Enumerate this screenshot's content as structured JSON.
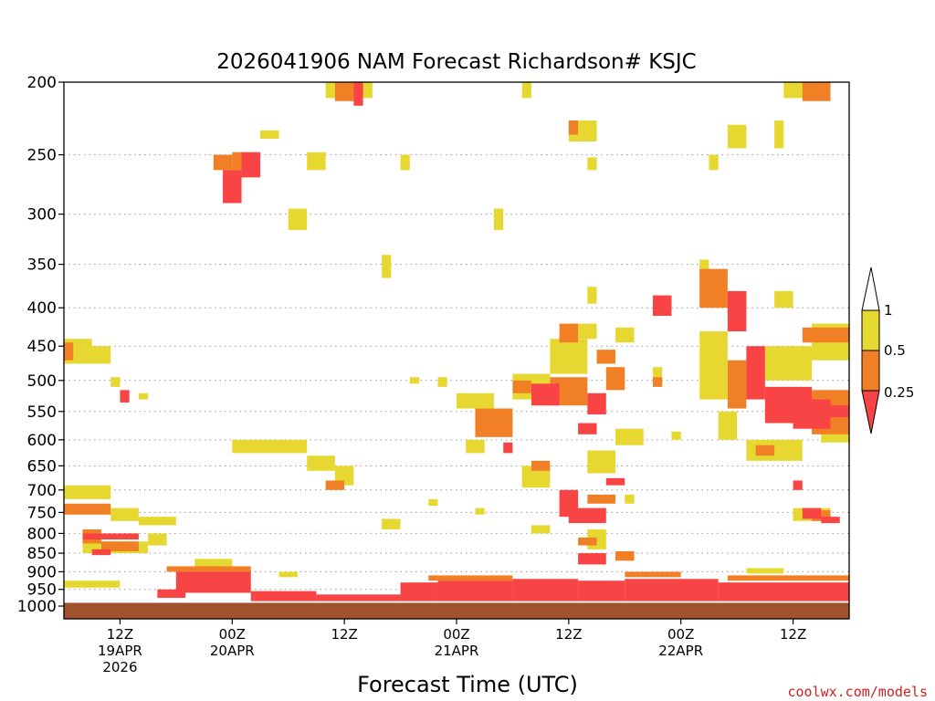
{
  "chart_data": {
    "type": "heatmap",
    "title": "2026041906 NAM Forecast Richardson# KSJC",
    "xlabel": "Forecast Time (UTC)",
    "ylabel": "",
    "credit": "coolwx.com/models",
    "y_scale": "log-pressure (inverted)",
    "ylim": [
      1040,
      200
    ],
    "xlim": [
      0,
      84
    ],
    "y_ticks": [
      200,
      250,
      300,
      350,
      400,
      450,
      500,
      550,
      600,
      650,
      700,
      750,
      800,
      850,
      900,
      950,
      1000
    ],
    "x_ticks": [
      {
        "hour": 6,
        "lines": [
          "12Z",
          "19APR",
          "2026"
        ]
      },
      {
        "hour": 18,
        "lines": [
          "00Z",
          "20APR"
        ]
      },
      {
        "hour": 30,
        "lines": [
          "12Z"
        ]
      },
      {
        "hour": 42,
        "lines": [
          "00Z",
          "21APR"
        ]
      },
      {
        "hour": 54,
        "lines": [
          "12Z"
        ]
      },
      {
        "hour": 66,
        "lines": [
          "00Z",
          "22APR"
        ]
      },
      {
        "hour": 78,
        "lines": [
          "12Z"
        ]
      }
    ],
    "colorbar": {
      "levels": [
        "1",
        "0.5",
        "0.25"
      ],
      "bins": [
        {
          "label": "0.5 - 1",
          "color": "#e6d830"
        },
        {
          "label": "0.25 - 0.5",
          "color": "#f07f25"
        },
        {
          "label": "< 0.25",
          "color": "#f84444"
        }
      ]
    },
    "colors": {
      "low": "#f84444",
      "mid": "#f07f25",
      "high": "#e6d830",
      "ground": "#a0522d"
    },
    "ground_level_hpa": 990,
    "cell_hours": 1,
    "series": [
      {
        "name": "0.5-1",
        "cells": [
          {
            "t0": 28,
            "t1": 33,
            "p0": 200,
            "p1": 210
          },
          {
            "t0": 49,
            "t1": 50,
            "p0": 200,
            "p1": 210
          },
          {
            "t0": 77,
            "t1": 82,
            "p0": 200,
            "p1": 210
          },
          {
            "t0": 21,
            "t1": 23,
            "p0": 232,
            "p1": 238
          },
          {
            "t0": 54,
            "t1": 57,
            "p0": 225,
            "p1": 240
          },
          {
            "t0": 71,
            "t1": 73,
            "p0": 228,
            "p1": 245
          },
          {
            "t0": 76,
            "t1": 77,
            "p0": 225,
            "p1": 245
          },
          {
            "t0": 26,
            "t1": 28,
            "p0": 248,
            "p1": 262
          },
          {
            "t0": 36,
            "t1": 37,
            "p0": 250,
            "p1": 262
          },
          {
            "t0": 56,
            "t1": 57,
            "p0": 252,
            "p1": 262
          },
          {
            "t0": 69,
            "t1": 70,
            "p0": 250,
            "p1": 262
          },
          {
            "t0": 24,
            "t1": 26,
            "p0": 295,
            "p1": 315
          },
          {
            "t0": 46,
            "t1": 47,
            "p0": 295,
            "p1": 315
          },
          {
            "t0": 34,
            "t1": 35,
            "p0": 340,
            "p1": 365
          },
          {
            "t0": 68,
            "t1": 69,
            "p0": 345,
            "p1": 375
          },
          {
            "t0": 56,
            "t1": 57,
            "p0": 375,
            "p1": 395
          },
          {
            "t0": 72,
            "t1": 73,
            "p0": 380,
            "p1": 400
          },
          {
            "t0": 76,
            "t1": 78,
            "p0": 380,
            "p1": 400
          },
          {
            "t0": 0,
            "t1": 5,
            "p0": 450,
            "p1": 475
          },
          {
            "t0": 0,
            "t1": 3,
            "p0": 440,
            "p1": 460
          },
          {
            "t0": 5,
            "t1": 6,
            "p0": 495,
            "p1": 510
          },
          {
            "t0": 8,
            "t1": 9,
            "p0": 520,
            "p1": 530
          },
          {
            "t0": 37,
            "t1": 38,
            "p0": 495,
            "p1": 505
          },
          {
            "t0": 40,
            "t1": 41,
            "p0": 495,
            "p1": 510
          },
          {
            "t0": 42,
            "t1": 46,
            "p0": 520,
            "p1": 545
          },
          {
            "t0": 48,
            "t1": 52,
            "p0": 490,
            "p1": 530
          },
          {
            "t0": 52,
            "t1": 56,
            "p0": 440,
            "p1": 490
          },
          {
            "t0": 54,
            "t1": 57,
            "p0": 420,
            "p1": 440
          },
          {
            "t0": 59,
            "t1": 61,
            "p0": 425,
            "p1": 445
          },
          {
            "t0": 63,
            "t1": 64,
            "p0": 480,
            "p1": 500
          },
          {
            "t0": 68,
            "t1": 71,
            "p0": 430,
            "p1": 530
          },
          {
            "t0": 75,
            "t1": 80,
            "p0": 450,
            "p1": 500
          },
          {
            "t0": 80,
            "t1": 84,
            "p0": 420,
            "p1": 470
          },
          {
            "t0": 70,
            "t1": 72,
            "p0": 550,
            "p1": 600
          },
          {
            "t0": 73,
            "t1": 79,
            "p0": 600,
            "p1": 640
          },
          {
            "t0": 81,
            "t1": 84,
            "p0": 580,
            "p1": 605
          },
          {
            "t0": 18,
            "t1": 26,
            "p0": 600,
            "p1": 625
          },
          {
            "t0": 26,
            "t1": 29,
            "p0": 630,
            "p1": 660
          },
          {
            "t0": 29,
            "t1": 31,
            "p0": 650,
            "p1": 690
          },
          {
            "t0": 43,
            "t1": 45,
            "p0": 600,
            "p1": 625
          },
          {
            "t0": 49,
            "t1": 52,
            "p0": 650,
            "p1": 695
          },
          {
            "t0": 56,
            "t1": 59,
            "p0": 620,
            "p1": 665
          },
          {
            "t0": 59,
            "t1": 62,
            "p0": 580,
            "p1": 610
          },
          {
            "t0": 65,
            "t1": 66,
            "p0": 585,
            "p1": 600
          },
          {
            "t0": 0,
            "t1": 5,
            "p0": 690,
            "p1": 720
          },
          {
            "t0": 5,
            "t1": 8,
            "p0": 740,
            "p1": 770
          },
          {
            "t0": 8,
            "t1": 12,
            "p0": 760,
            "p1": 780
          },
          {
            "t0": 2,
            "t1": 9,
            "p0": 820,
            "p1": 850
          },
          {
            "t0": 9,
            "t1": 11,
            "p0": 800,
            "p1": 830
          },
          {
            "t0": 34,
            "t1": 36,
            "p0": 765,
            "p1": 790
          },
          {
            "t0": 39,
            "t1": 40,
            "p0": 720,
            "p1": 735
          },
          {
            "t0": 44,
            "t1": 45,
            "p0": 740,
            "p1": 755
          },
          {
            "t0": 50,
            "t1": 52,
            "p0": 780,
            "p1": 800
          },
          {
            "t0": 56,
            "t1": 58,
            "p0": 790,
            "p1": 840
          },
          {
            "t0": 60,
            "t1": 61,
            "p0": 710,
            "p1": 730
          },
          {
            "t0": 78,
            "t1": 82,
            "p0": 740,
            "p1": 770
          },
          {
            "t0": 14,
            "t1": 18,
            "p0": 865,
            "p1": 890
          },
          {
            "t0": 0,
            "t1": 6,
            "p0": 925,
            "p1": 945
          },
          {
            "t0": 23,
            "t1": 25,
            "p0": 900,
            "p1": 915
          },
          {
            "t0": 73,
            "t1": 77,
            "p0": 890,
            "p1": 905
          }
        ]
      },
      {
        "name": "0.25-0.5",
        "cells": [
          {
            "t0": 29,
            "t1": 31,
            "p0": 200,
            "p1": 212
          },
          {
            "t0": 53,
            "t1": 55,
            "p0": 420,
            "p1": 445
          },
          {
            "t0": 79,
            "t1": 82,
            "p0": 200,
            "p1": 212
          },
          {
            "t0": 16,
            "t1": 18,
            "p0": 250,
            "p1": 262
          },
          {
            "t0": 54,
            "t1": 55,
            "p0": 225,
            "p1": 235
          },
          {
            "t0": 18,
            "t1": 19,
            "p0": 248,
            "p1": 262
          },
          {
            "t0": 68,
            "t1": 71,
            "p0": 355,
            "p1": 400
          },
          {
            "t0": 63,
            "t1": 64,
            "p0": 495,
            "p1": 510
          },
          {
            "t0": 0,
            "t1": 1,
            "p0": 445,
            "p1": 470
          },
          {
            "t0": 44,
            "t1": 48,
            "p0": 545,
            "p1": 595
          },
          {
            "t0": 48,
            "t1": 50,
            "p0": 500,
            "p1": 520
          },
          {
            "t0": 52,
            "t1": 56,
            "p0": 495,
            "p1": 540
          },
          {
            "t0": 58,
            "t1": 60,
            "p0": 480,
            "p1": 515
          },
          {
            "t0": 57,
            "t1": 59,
            "p0": 455,
            "p1": 475
          },
          {
            "t0": 79,
            "t1": 84,
            "p0": 425,
            "p1": 445
          },
          {
            "t0": 80,
            "t1": 84,
            "p0": 515,
            "p1": 590
          },
          {
            "t0": 71,
            "t1": 73,
            "p0": 470,
            "p1": 545
          },
          {
            "t0": 74,
            "t1": 76,
            "p0": 610,
            "p1": 630
          },
          {
            "t0": 0,
            "t1": 5,
            "p0": 730,
            "p1": 755
          },
          {
            "t0": 2,
            "t1": 4,
            "p0": 790,
            "p1": 825
          },
          {
            "t0": 4,
            "t1": 8,
            "p0": 820,
            "p1": 845
          },
          {
            "t0": 28,
            "t1": 30,
            "p0": 680,
            "p1": 700
          },
          {
            "t0": 50,
            "t1": 52,
            "p0": 640,
            "p1": 660
          },
          {
            "t0": 56,
            "t1": 59,
            "p0": 710,
            "p1": 730
          },
          {
            "t0": 55,
            "t1": 57,
            "p0": 810,
            "p1": 830
          },
          {
            "t0": 80,
            "t1": 82,
            "p0": 745,
            "p1": 770
          },
          {
            "t0": 59,
            "t1": 61,
            "p0": 845,
            "p1": 870
          },
          {
            "t0": 14,
            "t1": 17,
            "p0": 885,
            "p1": 905
          },
          {
            "t0": 39,
            "t1": 48,
            "p0": 910,
            "p1": 925
          },
          {
            "t0": 60,
            "t1": 66,
            "p0": 900,
            "p1": 915
          },
          {
            "t0": 71,
            "t1": 84,
            "p0": 910,
            "p1": 925
          },
          {
            "t0": 11,
            "t1": 20,
            "p0": 885,
            "p1": 900
          }
        ]
      },
      {
        "name": "<0.25",
        "cells": [
          {
            "t0": 31,
            "t1": 32,
            "p0": 200,
            "p1": 215
          },
          {
            "t0": 17,
            "t1": 19,
            "p0": 262,
            "p1": 290
          },
          {
            "t0": 19,
            "t1": 21,
            "p0": 248,
            "p1": 268
          },
          {
            "t0": 63,
            "t1": 65,
            "p0": 385,
            "p1": 410
          },
          {
            "t0": 71,
            "t1": 73,
            "p0": 380,
            "p1": 430
          },
          {
            "t0": 73,
            "t1": 75,
            "p0": 450,
            "p1": 530
          },
          {
            "t0": 75,
            "t1": 80,
            "p0": 510,
            "p1": 570
          },
          {
            "t0": 78,
            "t1": 82,
            "p0": 530,
            "p1": 580
          },
          {
            "t0": 82,
            "t1": 84,
            "p0": 540,
            "p1": 560
          },
          {
            "t0": 6,
            "t1": 7,
            "p0": 515,
            "p1": 535
          },
          {
            "t0": 50,
            "t1": 53,
            "p0": 505,
            "p1": 540
          },
          {
            "t0": 56,
            "t1": 58,
            "p0": 520,
            "p1": 555
          },
          {
            "t0": 55,
            "t1": 57,
            "p0": 570,
            "p1": 590
          },
          {
            "t0": 47,
            "t1": 48,
            "p0": 605,
            "p1": 625
          },
          {
            "t0": 53,
            "t1": 55,
            "p0": 700,
            "p1": 760
          },
          {
            "t0": 54,
            "t1": 58,
            "p0": 740,
            "p1": 775
          },
          {
            "t0": 55,
            "t1": 58,
            "p0": 850,
            "p1": 880
          },
          {
            "t0": 58,
            "t1": 60,
            "p0": 675,
            "p1": 690
          },
          {
            "t0": 78,
            "t1": 79,
            "p0": 680,
            "p1": 700
          },
          {
            "t0": 79,
            "t1": 81,
            "p0": 740,
            "p1": 765
          },
          {
            "t0": 81,
            "t1": 83,
            "p0": 760,
            "p1": 775
          },
          {
            "t0": 2,
            "t1": 8,
            "p0": 800,
            "p1": 815
          },
          {
            "t0": 3,
            "t1": 5,
            "p0": 840,
            "p1": 855
          },
          {
            "t0": 12,
            "t1": 20,
            "p0": 900,
            "p1": 960
          },
          {
            "t0": 10,
            "t1": 13,
            "p0": 950,
            "p1": 975
          },
          {
            "t0": 20,
            "t1": 27,
            "p0": 955,
            "p1": 985
          },
          {
            "t0": 27,
            "t1": 36,
            "p0": 965,
            "p1": 985
          },
          {
            "t0": 36,
            "t1": 40,
            "p0": 930,
            "p1": 985
          },
          {
            "t0": 40,
            "t1": 48,
            "p0": 925,
            "p1": 985
          },
          {
            "t0": 48,
            "t1": 55,
            "p0": 920,
            "p1": 985
          },
          {
            "t0": 55,
            "t1": 60,
            "p0": 925,
            "p1": 985
          },
          {
            "t0": 60,
            "t1": 70,
            "p0": 920,
            "p1": 985
          },
          {
            "t0": 70,
            "t1": 84,
            "p0": 930,
            "p1": 985
          }
        ]
      }
    ]
  }
}
